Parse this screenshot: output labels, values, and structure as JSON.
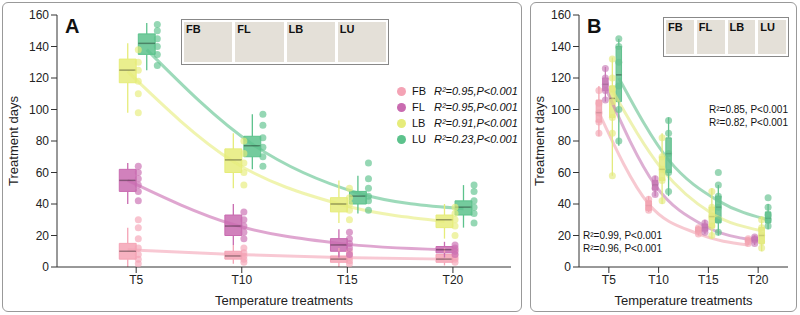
{
  "chart_data": [
    {
      "type": "box",
      "title": "A",
      "x_label": "Temperature treatments",
      "y_label": "Treatment days",
      "categories": [
        "T5",
        "T10",
        "T15",
        "T20"
      ],
      "ylim": [
        0,
        160
      ],
      "yticks": [
        0,
        20,
        40,
        60,
        80,
        100,
        120,
        140,
        160
      ],
      "inset_labels": [
        "FB",
        "FL",
        "LB",
        "LU"
      ],
      "series": [
        {
          "name": "FB",
          "color": "#f4a3b5",
          "stat": "R²=0.95,P<0.001",
          "box": [
            {
              "min": 0,
              "q1": 5,
              "median": 10,
              "q3": 15,
              "max": 25
            },
            {
              "min": 2,
              "q1": 5,
              "median": 7,
              "q3": 10,
              "max": 14
            },
            {
              "min": 0,
              "q1": 3,
              "median": 5,
              "q3": 7,
              "max": 12
            },
            {
              "min": 1,
              "q1": 3,
              "median": 5,
              "q3": 8,
              "max": 12
            }
          ],
          "points": [
            [
              2,
              5,
              8,
              12,
              18,
              25,
              30
            ],
            [
              3,
              5,
              7,
              9,
              12
            ],
            [
              2,
              4,
              6,
              8,
              10
            ],
            [
              3,
              5,
              6,
              8,
              11
            ]
          ],
          "fit": [
            11,
            8,
            6,
            5
          ]
        },
        {
          "name": "FL",
          "color": "#c96bb0",
          "stat": "R²=0.95,P<0.001",
          "box": [
            {
              "min": 40,
              "q1": 48,
              "median": 55,
              "q3": 62,
              "max": 66
            },
            {
              "min": 14,
              "q1": 20,
              "median": 26,
              "q3": 33,
              "max": 40
            },
            {
              "min": 6,
              "q1": 10,
              "median": 14,
              "q3": 18,
              "max": 24
            },
            {
              "min": 6,
              "q1": 9,
              "median": 11,
              "q3": 13,
              "max": 16
            }
          ],
          "points": [
            [
              42,
              48,
              52,
              56,
              60,
              64
            ],
            [
              18,
              22,
              26,
              30,
              35
            ],
            [
              8,
              12,
              15,
              18,
              22
            ],
            [
              8,
              10,
              12,
              14
            ]
          ],
          "fit": [
            55,
            27,
            15,
            11
          ]
        },
        {
          "name": "LB",
          "color": "#e6ec7a",
          "stat": "R²=0.91,P<0.001",
          "box": [
            {
              "min": 98,
              "q1": 117,
              "median": 125,
              "q3": 132,
              "max": 142
            },
            {
              "min": 50,
              "q1": 60,
              "median": 68,
              "q3": 75,
              "max": 85
            },
            {
              "min": 28,
              "q1": 35,
              "median": 40,
              "q3": 44,
              "max": 55
            },
            {
              "min": 18,
              "q1": 25,
              "median": 30,
              "q3": 33,
              "max": 40
            }
          ],
          "points": [
            [
              98,
              110,
              118,
              125,
              130,
              138
            ],
            [
              52,
              60,
              66,
              72,
              80
            ],
            [
              30,
              36,
              40,
              44,
              50
            ],
            [
              20,
              26,
              30,
              34,
              38
            ]
          ],
          "fit": [
            124,
            67,
            40,
            29
          ]
        },
        {
          "name": "LU",
          "color": "#5cc28c",
          "stat": "R²=0.23,P<0.001",
          "box": [
            {
              "min": 125,
              "q1": 135,
              "median": 142,
              "q3": 148,
              "max": 155
            },
            {
              "min": 62,
              "q1": 70,
              "median": 77,
              "q3": 83,
              "max": 97
            },
            {
              "min": 34,
              "q1": 40,
              "median": 45,
              "q3": 48,
              "max": 58
            },
            {
              "min": 25,
              "q1": 33,
              "median": 38,
              "q3": 42,
              "max": 52
            }
          ],
          "points": [
            [
              128,
              135,
              140,
              145,
              150,
              154
            ],
            [
              64,
              70,
              76,
              82,
              90,
              97
            ],
            [
              36,
              42,
              45,
              50,
              56,
              66
            ],
            [
              28,
              34,
              38,
              42,
              48,
              52
            ]
          ],
          "fit": [
            138,
            78,
            47,
            37
          ]
        }
      ]
    },
    {
      "type": "box",
      "title": "B",
      "x_label": "Temperature treatments",
      "y_label": "Treatment days",
      "categories": [
        "T5",
        "T10",
        "T15",
        "T20"
      ],
      "ylim": [
        0,
        160
      ],
      "yticks": [
        0,
        20,
        40,
        60,
        80,
        100,
        120,
        140,
        160
      ],
      "inset_labels": [
        "FB",
        "FL",
        "LB",
        "LU"
      ],
      "annotations": [
        [
          "R²=0.99, P<0.001",
          "R²=0.96, P<0.001"
        ],
        [
          "R²=0.85, P<0.001",
          "R²=0.82, P<0.001"
        ]
      ],
      "series": [
        {
          "name": "FB",
          "color": "#f2a5b2",
          "box": [
            {
              "min": 83,
              "q1": 92,
              "median": 98,
              "q3": 106,
              "max": 115
            },
            {
              "min": 35,
              "q1": 36,
              "median": 39,
              "q3": 42,
              "max": 45
            },
            {
              "min": 20,
              "q1": 22,
              "median": 23,
              "q3": 25,
              "max": 26
            },
            {
              "min": 14,
              "q1": 16,
              "median": 17,
              "q3": 18,
              "max": 19
            }
          ],
          "points": [
            [
              85,
              92,
              98,
              104,
              112
            ],
            [
              36,
              38,
              40,
              43
            ],
            [
              21,
              23,
              24,
              25
            ],
            [
              15,
              16,
              17,
              18
            ]
          ],
          "fit": [
            98,
            40,
            21,
            14
          ]
        },
        {
          "name": "FL",
          "color": "#c77ab6",
          "box": [
            {
              "min": 105,
              "q1": 112,
              "median": 116,
              "q3": 120,
              "max": 127
            },
            {
              "min": 45,
              "q1": 49,
              "median": 52,
              "q3": 55,
              "max": 58
            },
            {
              "min": 21,
              "q1": 23,
              "median": 25,
              "q3": 27,
              "max": 30
            },
            {
              "min": 14,
              "q1": 16,
              "median": 17,
              "q3": 19,
              "max": 20
            }
          ],
          "points": [
            [
              106,
              112,
              116,
              120,
              126
            ],
            [
              46,
              50,
              53,
              56
            ],
            [
              22,
              24,
              26,
              28
            ],
            [
              15,
              17,
              18,
              19
            ]
          ],
          "fit": [
            114,
            52,
            26,
            17
          ]
        },
        {
          "name": "LB",
          "color": "#e3ea7e",
          "box": [
            {
              "min": 58,
              "q1": 95,
              "median": 107,
              "q3": 115,
              "max": 133
            },
            {
              "min": 40,
              "q1": 55,
              "median": 62,
              "q3": 70,
              "max": 85
            },
            {
              "min": 18,
              "q1": 25,
              "median": 32,
              "q3": 38,
              "max": 50
            },
            {
              "min": 10,
              "q1": 15,
              "median": 20,
              "q3": 25,
              "max": 32
            }
          ],
          "points": [
            [
              58,
              85,
              95,
              105,
              113,
              120,
              132
            ],
            [
              42,
              55,
              62,
              70,
              82
            ],
            [
              20,
              26,
              32,
              38,
              48
            ],
            [
              12,
              16,
              20,
              25,
              30
            ]
          ],
          "fit": [
            112,
            62,
            34,
            23
          ]
        },
        {
          "name": "LU",
          "color": "#62c08e",
          "box": [
            {
              "min": 77,
              "q1": 105,
              "median": 122,
              "q3": 140,
              "max": 145
            },
            {
              "min": 45,
              "q1": 60,
              "median": 72,
              "q3": 82,
              "max": 95
            },
            {
              "min": 20,
              "q1": 28,
              "median": 38,
              "q3": 45,
              "max": 52
            },
            {
              "min": 24,
              "q1": 28,
              "median": 31,
              "q3": 35,
              "max": 40
            }
          ],
          "points": [
            [
              80,
              100,
              115,
              130,
              140,
              145
            ],
            [
              48,
              60,
              72,
              85,
              93
            ],
            [
              22,
              30,
              38,
              45,
              52,
              60
            ],
            [
              26,
              30,
              33,
              38,
              44
            ]
          ],
          "fit": [
            120,
            68,
            42,
            30
          ]
        }
      ]
    }
  ]
}
